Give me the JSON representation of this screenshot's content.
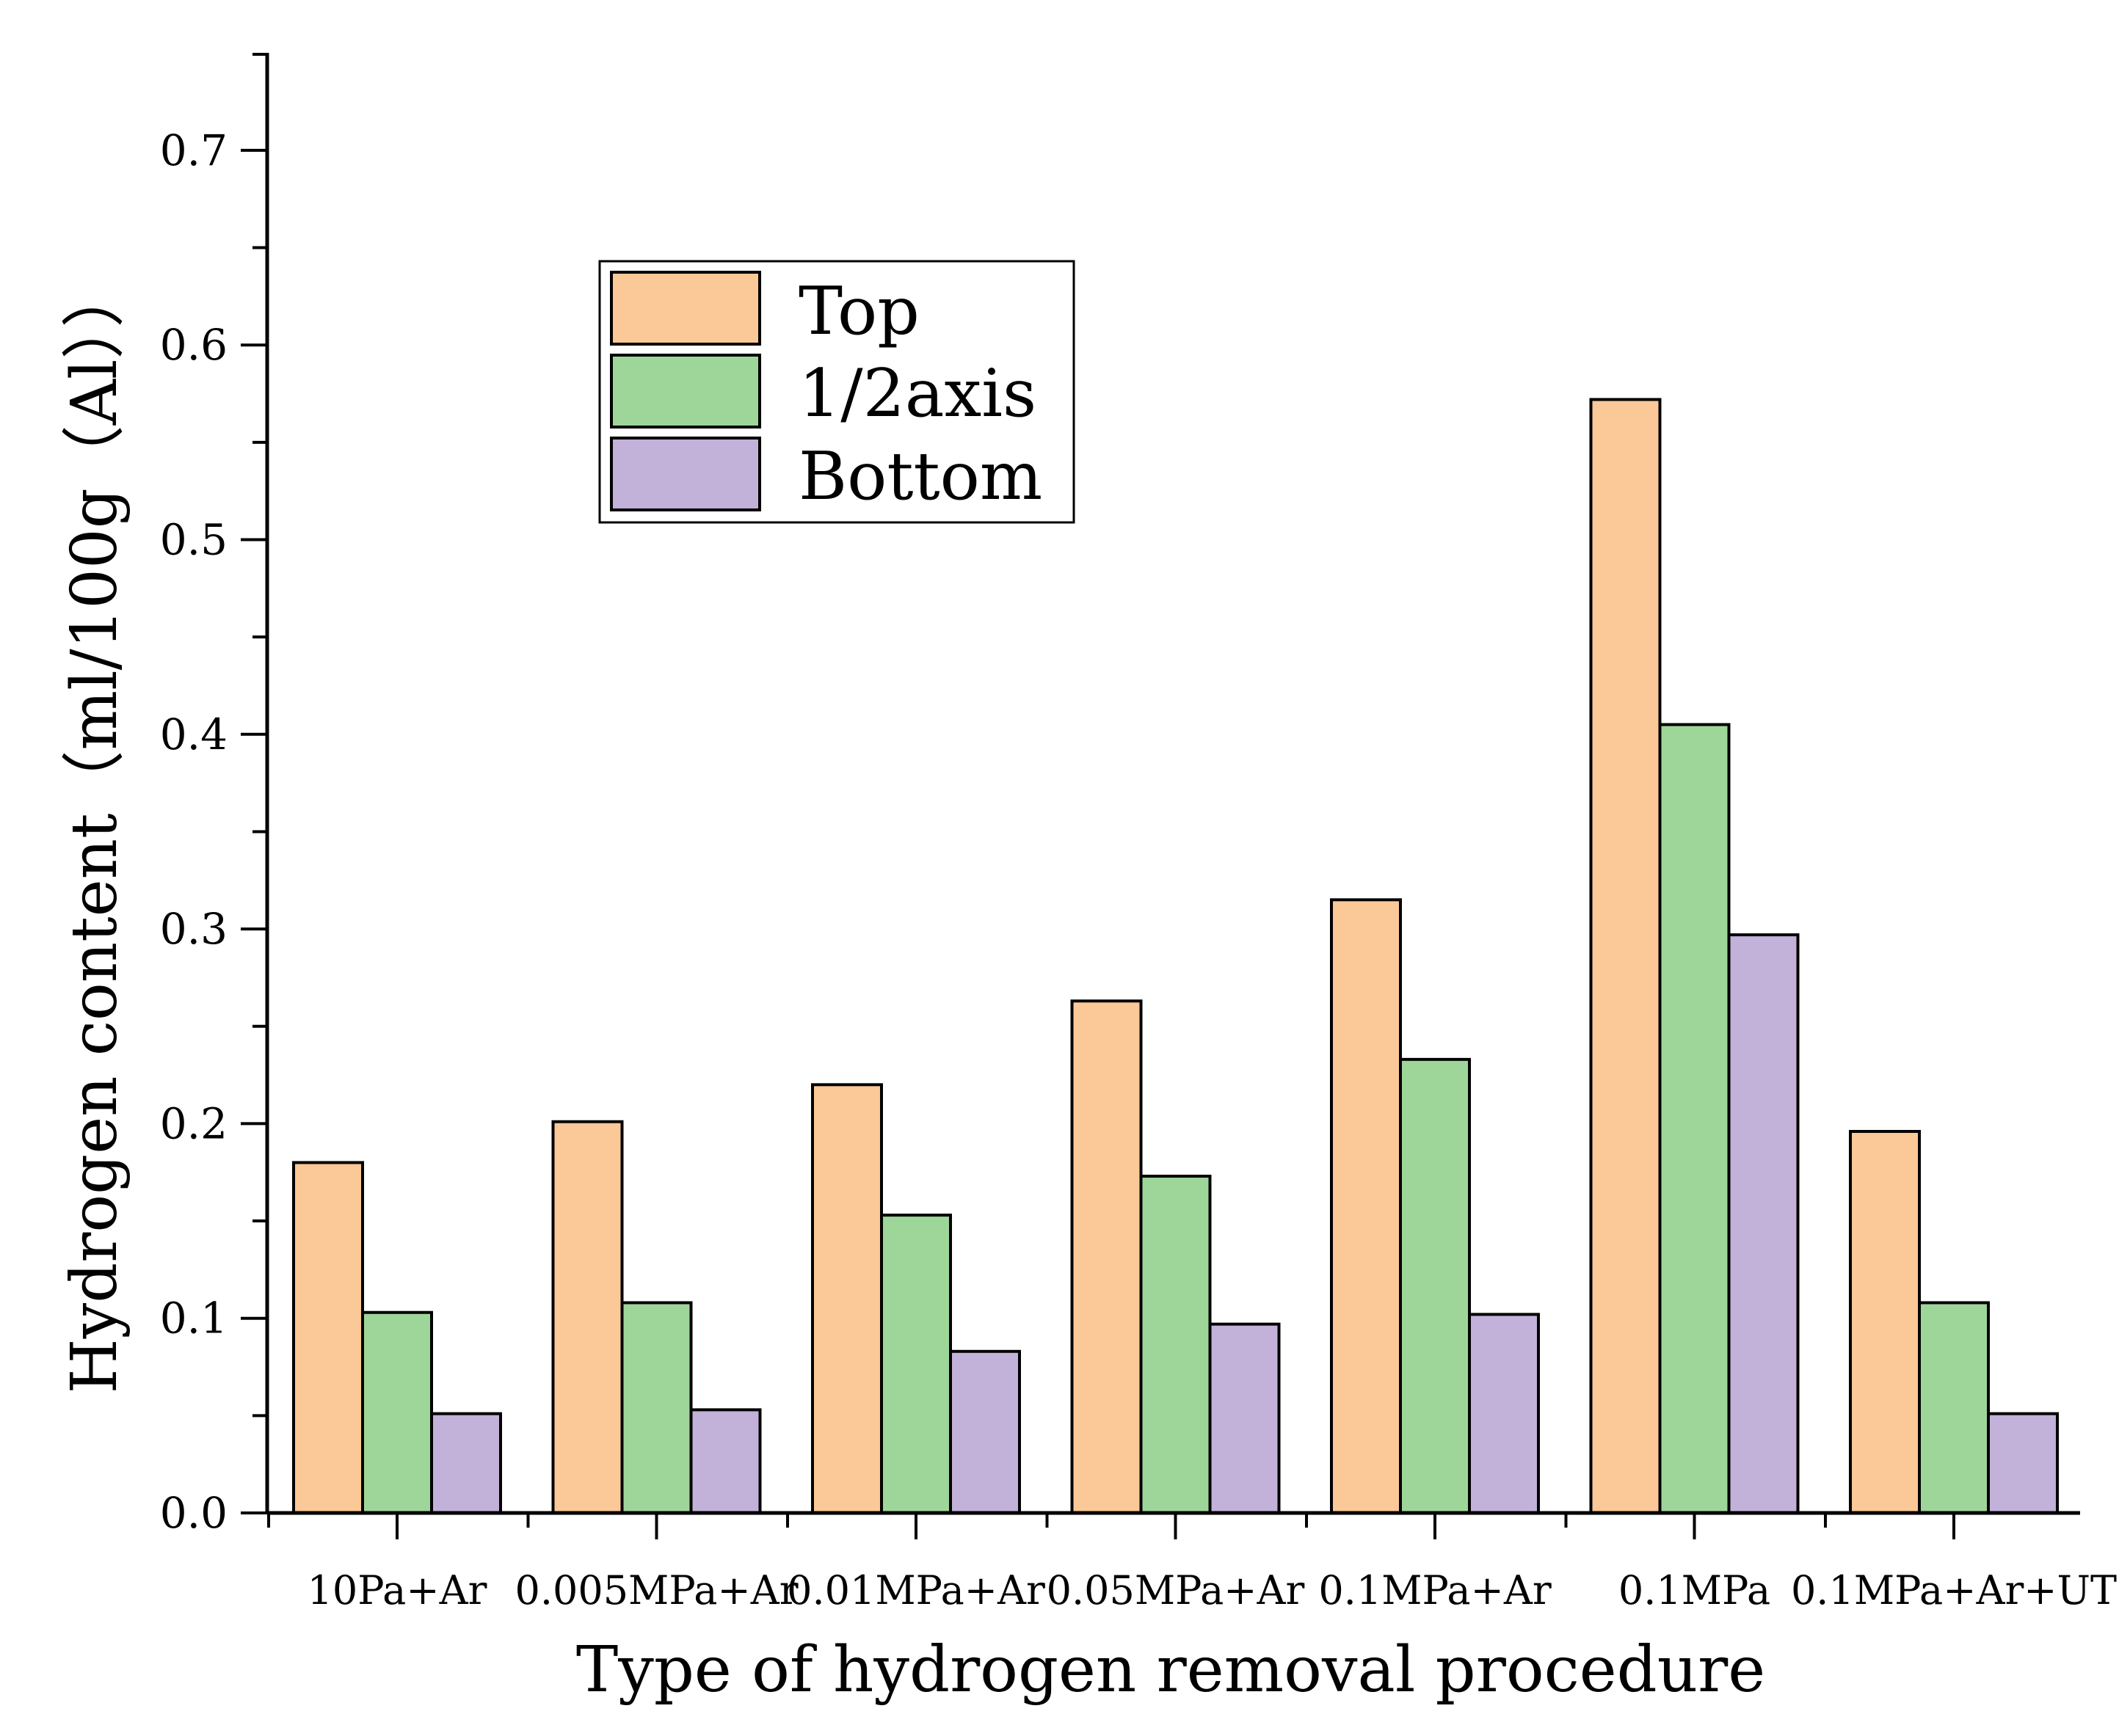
{
  "chart_data": {
    "type": "bar",
    "title": "",
    "xlabel": "Type of hydrogen removal procedure",
    "ylabel": "Hydrogen content（ml/100g（Al））",
    "ylim": [
      0,
      0.75
    ],
    "yticks": [
      "0.0",
      "0.1",
      "0.2",
      "0.3",
      "0.4",
      "0.5",
      "0.6",
      "0.7"
    ],
    "categories": [
      "10Pa+Ar",
      "0.005MPa+Ar",
      "0.01MPa+Ar",
      "0.05MPa+Ar",
      "0.1MPa+Ar",
      "0.1MPa",
      "0.1MPa+Ar+UT"
    ],
    "series": [
      {
        "name": "Top",
        "color": "#FBC897",
        "values": [
          0.18,
          0.201,
          0.22,
          0.263,
          0.315,
          0.572,
          0.196
        ]
      },
      {
        "name": "1/2axis",
        "color": "#9ED69A",
        "values": [
          0.103,
          0.108,
          0.153,
          0.173,
          0.233,
          0.405,
          0.108
        ]
      },
      {
        "name": "Bottom",
        "color": "#C2B1D8",
        "values": [
          0.051,
          0.053,
          0.083,
          0.097,
          0.102,
          0.297,
          0.051
        ]
      }
    ],
    "legend": {
      "position": "top-left"
    }
  }
}
